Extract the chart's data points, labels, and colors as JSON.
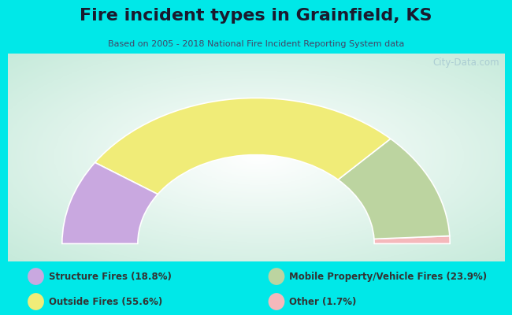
{
  "title": "Fire incident types in Grainfield, KS",
  "subtitle": "Based on 2005 - 2018 National Fire Incident Reporting System data",
  "categories": [
    "Structure Fires (18.8%)",
    "Outside Fires (55.6%)",
    "Mobile Property/Vehicle Fires (23.9%)",
    "Other (1.7%)"
  ],
  "values": [
    18.8,
    55.6,
    23.9,
    1.7
  ],
  "colors": [
    "#c9a8e0",
    "#f0ec78",
    "#bcd4a0",
    "#f5b8bb"
  ],
  "background_color": "#00e8e8",
  "chart_bg_start": "#c8ead8",
  "chart_bg_end": "#f0f8f2",
  "watermark": "City-Data.com",
  "legend_colors": [
    "#c9a8e0",
    "#f0ec78",
    "#bcd4a0",
    "#f5b8bb"
  ],
  "title_fontsize": 16,
  "subtitle_fontsize": 8
}
